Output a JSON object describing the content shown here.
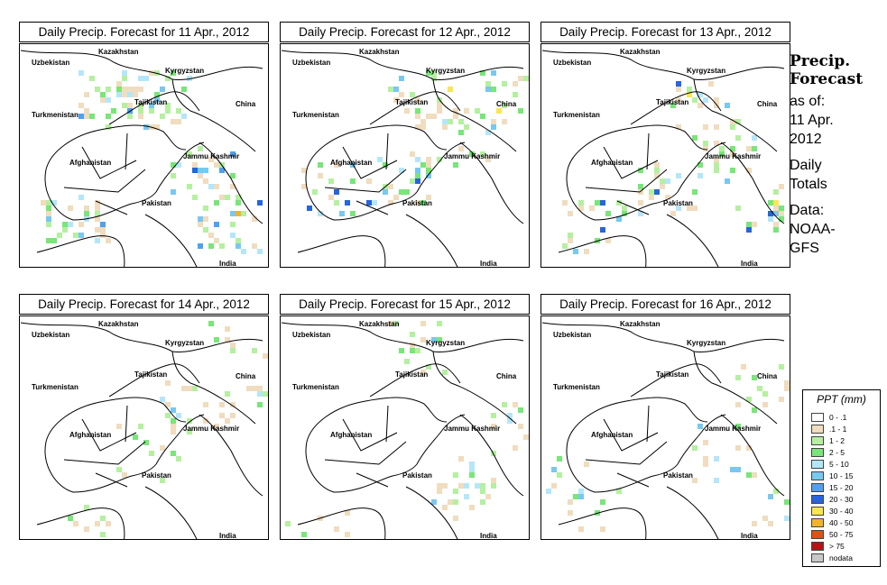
{
  "panel_title_prefix": "Daily Precip. Forecast for",
  "panels": [
    {
      "date": "11 Apr., 2012",
      "title": "Daily Precip. Forecast for  11 Apr., 2012",
      "intensity": "high"
    },
    {
      "date": "12 Apr., 2012",
      "title": "Daily Precip. Forecast for  12 Apr., 2012",
      "intensity": "medium"
    },
    {
      "date": "13 Apr., 2012",
      "title": "Daily Precip. Forecast for  13 Apr., 2012",
      "intensity": "medium"
    },
    {
      "date": "14 Apr., 2012",
      "title": "Daily Precip. Forecast for  14 Apr., 2012",
      "intensity": "low"
    },
    {
      "date": "15 Apr., 2012",
      "title": "Daily Precip. Forecast for  15 Apr., 2012",
      "intensity": "low"
    },
    {
      "date": "16 Apr., 2012",
      "title": "Daily Precip. Forecast for  16 Apr., 2012",
      "intensity": "low"
    }
  ],
  "map_labels": {
    "kazakhstan": "Kazakhstan",
    "uzbekistan": "Uzbekistan",
    "kyrgyzstan": "Kyrgyzstan",
    "tajikistan": "Tajikistan",
    "china": "China",
    "turkmenistan": "Turkmenistan",
    "jammu_kashmir": "Jammu Kashmir",
    "afghanistan": "Afghanistan",
    "pakistan": "Pakistan",
    "india": "India"
  },
  "side_text": {
    "title_line1": "Precip.",
    "title_line2": "Forecast",
    "as_of": "as of:",
    "date_line1": "11 Apr.",
    "date_line2": "2012",
    "daily": "Daily",
    "totals": "Totals",
    "data": "Data:",
    "source_line1": "NOAA-",
    "source_line2": "GFS"
  },
  "legend": {
    "title": "PPT (mm)",
    "items": [
      {
        "label": "0 - .1",
        "color": "#ffffff"
      },
      {
        "label": ".1 - 1",
        "color": "#f0dcbe"
      },
      {
        "label": "1 - 2",
        "color": "#b4f0a0"
      },
      {
        "label": "2 - 5",
        "color": "#78e678"
      },
      {
        "label": "5 - 10",
        "color": "#b4e6fa"
      },
      {
        "label": "10 - 15",
        "color": "#78c8f0"
      },
      {
        "label": "15 - 20",
        "color": "#50a0f0"
      },
      {
        "label": "20 - 30",
        "color": "#2864dc"
      },
      {
        "label": "30 - 40",
        "color": "#fae650"
      },
      {
        "label": "40 - 50",
        "color": "#f0b428"
      },
      {
        "label": "50 - 75",
        "color": "#e6500a"
      },
      {
        "label": "> 75",
        "color": "#b41414"
      },
      {
        "label": "nodata",
        "color": "#c8c8c8"
      }
    ]
  }
}
